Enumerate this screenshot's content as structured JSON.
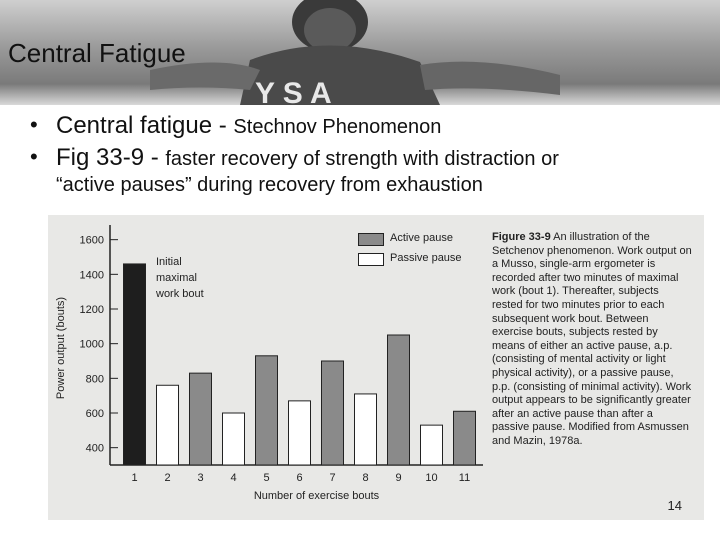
{
  "slide": {
    "title": "Central Fatigue",
    "bullets": [
      {
        "main": "Central fatigue - ",
        "sub": "Stechnov Phenomenon",
        "cont": ""
      },
      {
        "main": "Fig 33-9 - ",
        "sub": "faster recovery of strength with distraction or",
        "cont": "“active pauses” during recovery from exhaustion"
      }
    ],
    "page_number": "14",
    "header_banner_text": "Y S A"
  },
  "chart_data": {
    "type": "bar",
    "xlabel": "Number of exercise bouts",
    "ylabel": "Power output (bouts)",
    "ylim": [
      300,
      1650
    ],
    "yticks": [
      400,
      600,
      800,
      1000,
      1200,
      1400,
      1600
    ],
    "categories": [
      "1",
      "2",
      "3",
      "4",
      "5",
      "6",
      "7",
      "8",
      "9",
      "10",
      "11"
    ],
    "values": [
      1460,
      760,
      830,
      600,
      930,
      670,
      900,
      710,
      1050,
      530,
      610
    ],
    "bar_types": [
      "initial",
      "passive",
      "active",
      "passive",
      "active",
      "passive",
      "active",
      "passive",
      "active",
      "passive",
      "active"
    ],
    "annotation": "Initial maximal work bout",
    "legend": [
      {
        "label": "Active pause",
        "color": "#8a8a8a"
      },
      {
        "label": "Passive pause",
        "color": "#ffffff"
      }
    ],
    "initial_color": "#1e1e1e",
    "caption_title": "Figure 33-9",
    "caption_text": "An illustration of the Setchenov phenomenon. Work output on a Musso, single-arm ergometer is recorded after two minutes of maximal work (bout 1). Thereafter, subjects rested for two minutes prior to each subsequent work bout. Between exercise bouts, subjects rested by means of either an active pause, a.p. (consisting of mental activity or light physical activity), or a passive pause, p.p. (consisting of minimal activity). Work output appears to be significantly greater after an active pause than after a passive pause. Modified from Asmussen and Mazin, 1978a."
  }
}
